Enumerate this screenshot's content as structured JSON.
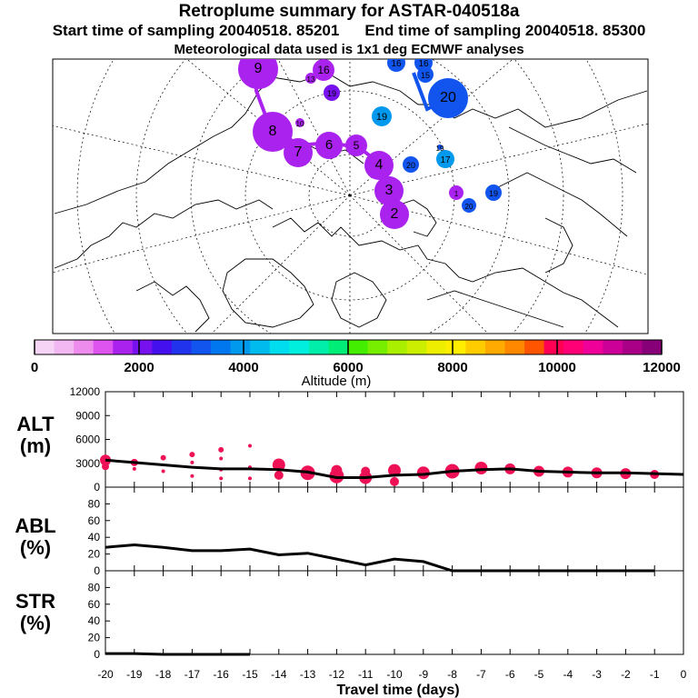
{
  "header": {
    "title": "Retroplume summary for ASTAR-040518a",
    "start_label": "Start time of sampling 20040518. 85201",
    "end_label": "End time of sampling 20040518. 85300",
    "met_label": "Meteorological data used is 1x1 deg ECMWF analyses"
  },
  "colors": {
    "altitude_scale": [
      "#f5d4f5",
      "#f2b8f2",
      "#ee8cee",
      "#dd55ee",
      "#aa22ee",
      "#7711ee",
      "#4411ee",
      "#2233ee",
      "#1155ee",
      "#0077ee",
      "#0099ee",
      "#00bbee",
      "#00ddee",
      "#00eedd",
      "#00eeaa",
      "#00ee77",
      "#44ee00",
      "#77ee00",
      "#aaee00",
      "#ccee00",
      "#eeee00",
      "#ffee00",
      "#ffcc00",
      "#ffaa00",
      "#ff8800",
      "#ff5500",
      "#ff0055",
      "#ff0077",
      "#ee0099",
      "#cc0099",
      "#aa0088",
      "#880077"
    ],
    "plume_marker": "#ee1155",
    "line": "#000000"
  },
  "colorbar": {
    "ticks": [
      "0",
      "2000",
      "4000",
      "6000",
      "8000",
      "10000",
      "12000"
    ],
    "label": "Altitude (m)"
  },
  "map": {
    "markers": [
      {
        "label": "9",
        "color": "#aa22ee"
      },
      {
        "label": "16",
        "color": "#aa22ee"
      },
      {
        "label": "13",
        "color": "#aa22ee"
      },
      {
        "label": "16",
        "color": "#1155ee"
      },
      {
        "label": "15",
        "color": "#1155ee"
      },
      {
        "label": "16",
        "color": "#1155ee"
      },
      {
        "label": "20",
        "color": "#1155ee"
      },
      {
        "label": "19",
        "color": "#7711ee"
      },
      {
        "label": "19",
        "color": "#0099ee"
      },
      {
        "label": "10",
        "color": "#aa22ee"
      },
      {
        "label": "8",
        "color": "#aa22ee"
      },
      {
        "label": "7",
        "color": "#aa22ee"
      },
      {
        "label": "6",
        "color": "#aa22ee"
      },
      {
        "label": "5",
        "color": "#aa22ee"
      },
      {
        "label": "4",
        "color": "#aa22ee"
      },
      {
        "label": "20",
        "color": "#1155ee"
      },
      {
        "label": "17",
        "color": "#0099ee"
      },
      {
        "label": "3",
        "color": "#aa22ee"
      },
      {
        "label": "2",
        "color": "#aa22ee"
      },
      {
        "label": "1",
        "color": "#aa22ee"
      },
      {
        "label": "19",
        "color": "#1155ee"
      },
      {
        "label": "20",
        "color": "#1155ee"
      },
      {
        "label": "19",
        "color": "#1155ee"
      }
    ]
  },
  "panels": {
    "alt_label": "ALT\n(m)",
    "abl_label": "ABL\n(%)",
    "str_label": "STR\n(%)"
  },
  "chart_data": [
    {
      "type": "line",
      "title": "ALT (m)",
      "xlabel": "Travel time (days)",
      "ylabel": "ALT (m)",
      "xlim": [
        -20,
        0
      ],
      "ylim": [
        0,
        12000
      ],
      "yticks": [
        "0",
        "3000",
        "6000",
        "9000",
        "12000"
      ],
      "xticks": [
        "-20",
        "-19",
        "-18",
        "-17",
        "-16",
        "-15",
        "-14",
        "-13",
        "-12",
        "-11",
        "-10",
        "-9",
        "-8",
        "-7",
        "-6",
        "-5",
        "-4",
        "-3",
        "-2",
        "-1",
        "0"
      ],
      "x": [
        -20,
        -19,
        -18,
        -17,
        -16,
        -15,
        -14,
        -13,
        -12,
        -11,
        -10,
        -9,
        -8,
        -7,
        -6,
        -5,
        -4,
        -3,
        -2,
        -1,
        0
      ],
      "values": [
        3400,
        3100,
        2800,
        2500,
        2300,
        2300,
        2200,
        1900,
        1200,
        1200,
        1500,
        1600,
        2000,
        2200,
        2300,
        2000,
        1900,
        1800,
        1800,
        1700,
        1600
      ],
      "clusters": [
        {
          "x": -20,
          "points": [
            3400,
            2600
          ]
        },
        {
          "x": -19,
          "points": [
            3100,
            2300
          ]
        },
        {
          "x": -18,
          "points": [
            3700,
            2000
          ]
        },
        {
          "x": -17,
          "points": [
            4100,
            3100,
            1400
          ]
        },
        {
          "x": -16,
          "points": [
            4700,
            3600,
            2200,
            1100
          ]
        },
        {
          "x": -15,
          "points": [
            5200,
            2500,
            1100
          ]
        },
        {
          "x": -14,
          "points": [
            2800,
            1500
          ]
        },
        {
          "x": -13,
          "points": [
            1800
          ]
        },
        {
          "x": -12,
          "points": [
            1400,
            2100
          ]
        },
        {
          "x": -11,
          "points": [
            1200,
            2000
          ]
        },
        {
          "x": -10,
          "points": [
            2100,
            700
          ]
        },
        {
          "x": -9,
          "points": [
            1800
          ]
        },
        {
          "x": -8,
          "points": [
            2000
          ]
        },
        {
          "x": -7,
          "points": [
            2400
          ]
        },
        {
          "x": -6,
          "points": [
            2300
          ]
        },
        {
          "x": -5,
          "points": [
            2000
          ]
        },
        {
          "x": -4,
          "points": [
            1900
          ]
        },
        {
          "x": -3,
          "points": [
            1800
          ]
        },
        {
          "x": -2,
          "points": [
            1700
          ]
        },
        {
          "x": -1,
          "points": [
            1600
          ]
        }
      ]
    },
    {
      "type": "line",
      "title": "ABL (%)",
      "xlabel": "Travel time (days)",
      "ylabel": "ABL (%)",
      "xlim": [
        -20,
        0
      ],
      "ylim": [
        0,
        100
      ],
      "yticks": [
        "0",
        "20",
        "40",
        "60",
        "80"
      ],
      "x": [
        -20,
        -19,
        -18,
        -17,
        -16,
        -15,
        -14,
        -13,
        -12,
        -11,
        -10,
        -9,
        -8,
        -7,
        -6,
        -5,
        -4,
        -3,
        -2,
        -1
      ],
      "values": [
        28,
        31,
        28,
        24,
        24,
        26,
        19,
        21,
        14,
        7,
        14,
        11,
        0,
        0,
        0,
        0,
        0,
        0,
        0,
        0
      ]
    },
    {
      "type": "line",
      "title": "STR (%)",
      "xlabel": "Travel time (days)",
      "ylabel": "STR (%)",
      "xlim": [
        -20,
        0
      ],
      "ylim": [
        0,
        100
      ],
      "yticks": [
        "0",
        "20",
        "40",
        "60",
        "80"
      ],
      "x": [
        -20,
        -19,
        -18,
        -17,
        -16,
        -15
      ],
      "values": [
        1,
        1,
        0,
        0,
        0,
        0
      ]
    }
  ]
}
